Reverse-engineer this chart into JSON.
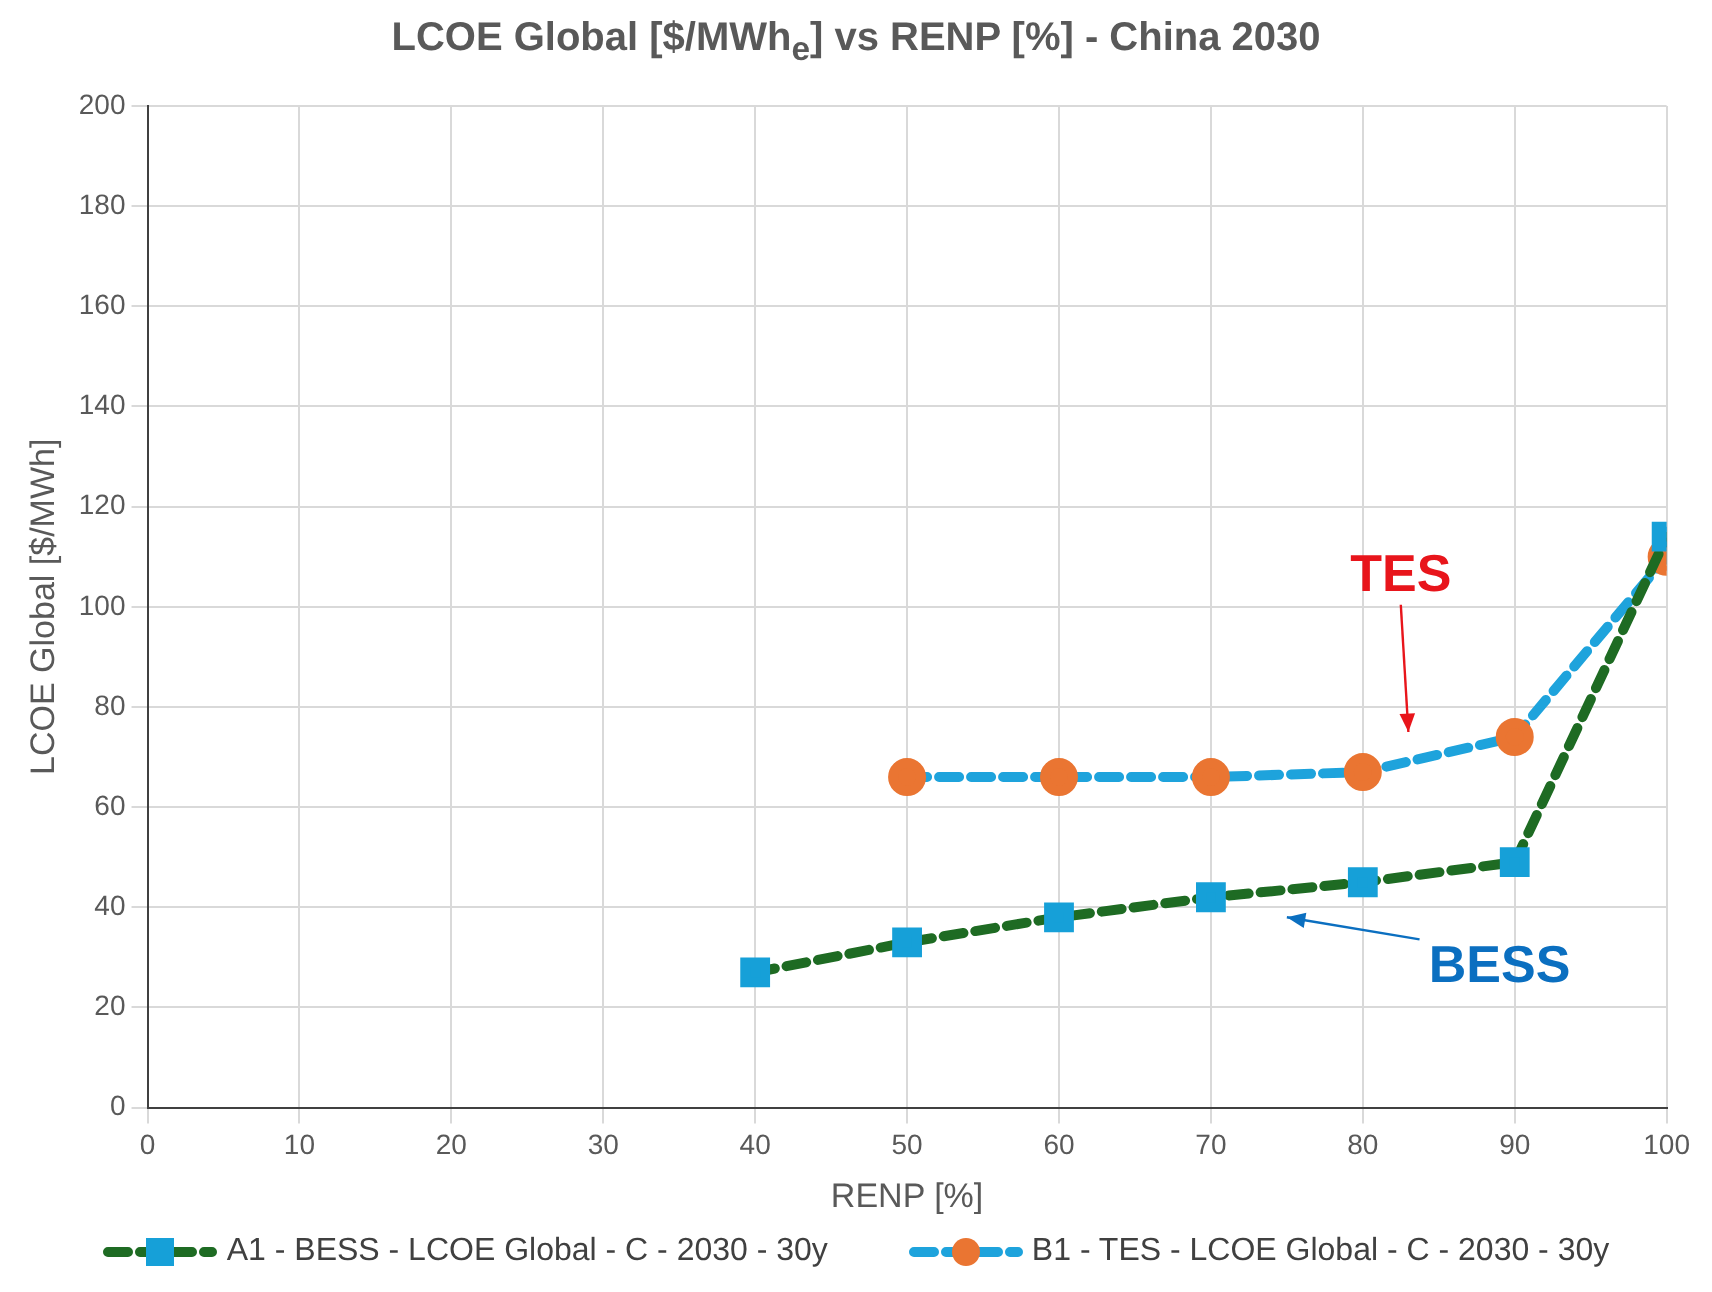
{
  "chart_data": {
    "type": "line",
    "title": "LCOE Global [$/MWh$_{e}$] vs RENP [%] - China 2030",
    "xlabel": "RENP [%]",
    "ylabel": "LCOE Global [$/MWh]",
    "xlim": [
      0,
      100
    ],
    "xticks": [
      0,
      10,
      20,
      30,
      40,
      50,
      60,
      70,
      80,
      90,
      100
    ],
    "ylim": [
      0,
      200
    ],
    "yticks": [
      0,
      20,
      40,
      60,
      80,
      100,
      120,
      140,
      160,
      180,
      200
    ],
    "grid": true,
    "legend": "bottom",
    "line_style": "dashed",
    "series": [
      {
        "name": "A1 - BESS - LCOE Global - C - 2030 - 30y",
        "color": "#1e6b23",
        "marker": "square",
        "colors": [
          "#16a0d8",
          "#16a0d8",
          "#16a0d8",
          "#16a0d8",
          "#16a0d8",
          "#16a0d8",
          "#16a0d8"
        ],
        "x": [
          40,
          50,
          60,
          70,
          80,
          90,
          100
        ],
        "values": [
          27,
          33,
          38,
          42,
          45,
          49,
          114
        ]
      },
      {
        "name": "B1 - TES - LCOE Global - C - 2030 - 30y",
        "color": "#1ea3dc",
        "marker": "circle",
        "colors": [
          "#ea7532",
          "#ea7532",
          "#ea7532",
          "#ea7532",
          "#ea7532",
          "#ea7532"
        ],
        "x": [
          50,
          60,
          70,
          80,
          90,
          100
        ],
        "values": [
          66,
          66,
          66,
          67,
          74,
          110
        ]
      }
    ],
    "annotations": [
      "TES",
      "BESS"
    ]
  }
}
